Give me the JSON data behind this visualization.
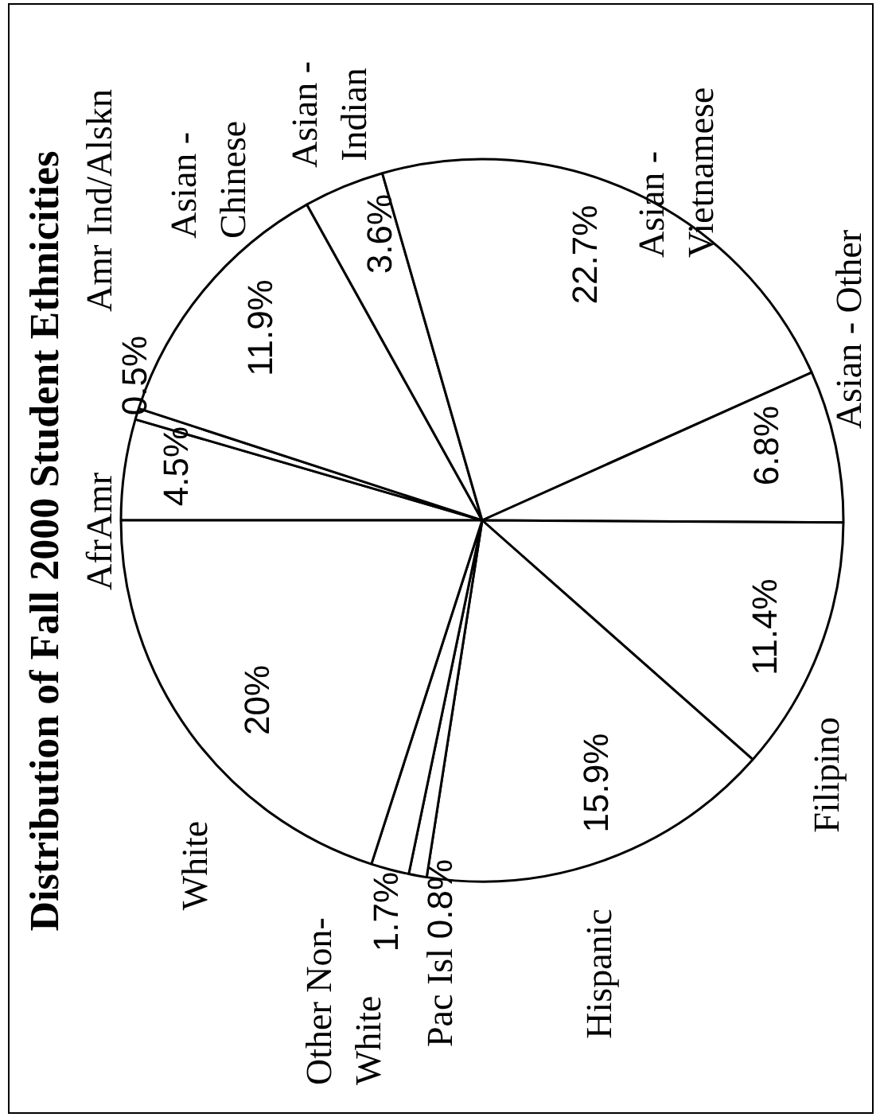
{
  "chart_data": {
    "type": "pie",
    "title": "Distribution of Fall 2000 Student Ethnicities",
    "categories": [
      "AfrAmr",
      "Amr Ind/Alskn",
      "Asian - Chinese",
      "Asian - Indian",
      "Asian - Vietnamese",
      "Asian - Other",
      "Filipino",
      "Hispanic",
      "Pac Isl",
      "Other Non-White",
      "White"
    ],
    "values": [
      4.5,
      0.5,
      11.9,
      3.6,
      22.7,
      6.8,
      11.4,
      15.9,
      0.8,
      1.7,
      20
    ],
    "value_labels": [
      "4.5%",
      "0.5%",
      "11.9%",
      "3.6%",
      "22.7%",
      "6.8%",
      "11.4%",
      "15.9%",
      "0.8%",
      "1.7%",
      "20%"
    ],
    "colors": [
      "#ffffff",
      "#ffffff",
      "#ffffff",
      "#ffffff",
      "#ffffff",
      "#ffffff",
      "#ffffff",
      "#ffffff",
      "#ffffff",
      "#ffffff",
      "#ffffff"
    ]
  }
}
